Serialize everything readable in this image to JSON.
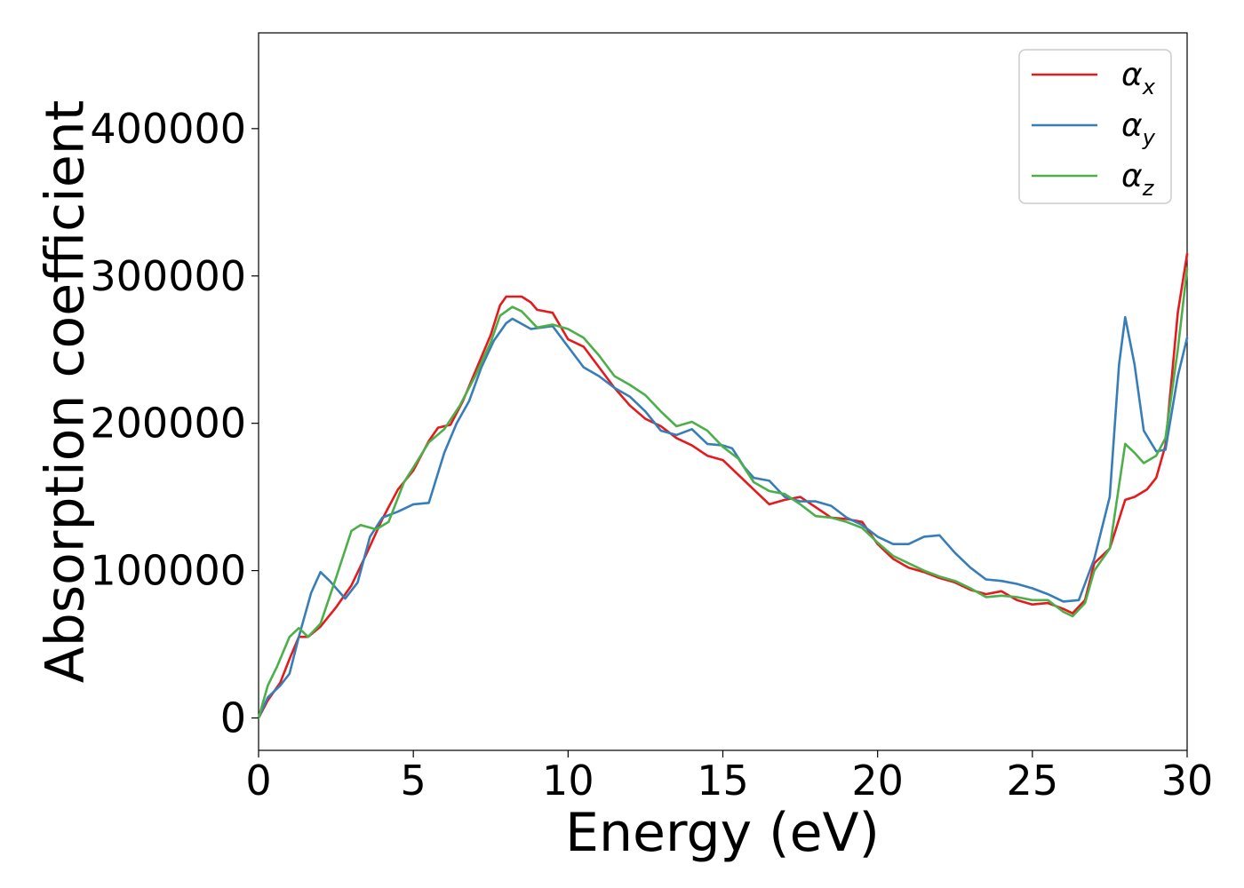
{
  "chart_data": {
    "type": "line",
    "title": "",
    "xlabel": "Energy (eV)",
    "ylabel": "Absorption coefficient",
    "xlim": [
      0,
      30
    ],
    "ylim": [
      -22000,
      465000
    ],
    "x_ticks": [
      "0",
      "5",
      "10",
      "15",
      "20",
      "25",
      "30"
    ],
    "y_ticks": [
      "0",
      "100000",
      "200000",
      "300000",
      "400000"
    ],
    "x_tick_values": [
      0,
      5,
      10,
      15,
      20,
      25,
      30
    ],
    "y_tick_values": [
      0,
      100000,
      200000,
      300000,
      400000
    ],
    "grid": false,
    "legend": {
      "position": "top-right",
      "entries": [
        {
          "base": "α",
          "sub": "x"
        },
        {
          "base": "α",
          "sub": "y"
        },
        {
          "base": "α",
          "sub": "z"
        }
      ]
    },
    "series": [
      {
        "color": "#e41a1c",
        "points": [
          [
            0,
            0
          ],
          [
            0.3,
            12000
          ],
          [
            0.7,
            24000
          ],
          [
            1.0,
            40000
          ],
          [
            1.3,
            55000
          ],
          [
            1.6,
            55000
          ],
          [
            2.0,
            62000
          ],
          [
            2.5,
            75000
          ],
          [
            3.0,
            90000
          ],
          [
            3.5,
            112000
          ],
          [
            4.0,
            135000
          ],
          [
            4.5,
            155000
          ],
          [
            5.0,
            168000
          ],
          [
            5.5,
            188000
          ],
          [
            5.8,
            197000
          ],
          [
            6.2,
            199000
          ],
          [
            6.6,
            215000
          ],
          [
            7.0,
            235000
          ],
          [
            7.5,
            260000
          ],
          [
            7.8,
            280000
          ],
          [
            8.0,
            286000
          ],
          [
            8.5,
            286000
          ],
          [
            8.8,
            282000
          ],
          [
            9.0,
            277000
          ],
          [
            9.5,
            275000
          ],
          [
            10.0,
            257000
          ],
          [
            10.5,
            252000
          ],
          [
            11.0,
            238000
          ],
          [
            11.5,
            224000
          ],
          [
            12.0,
            212000
          ],
          [
            12.5,
            203000
          ],
          [
            13.0,
            198000
          ],
          [
            13.5,
            190000
          ],
          [
            14.0,
            185000
          ],
          [
            14.5,
            178000
          ],
          [
            15.0,
            175000
          ],
          [
            15.5,
            165000
          ],
          [
            16.0,
            155000
          ],
          [
            16.5,
            145000
          ],
          [
            17.0,
            148000
          ],
          [
            17.5,
            150000
          ],
          [
            18.0,
            143000
          ],
          [
            18.5,
            136000
          ],
          [
            19.0,
            135000
          ],
          [
            19.5,
            133000
          ],
          [
            20.0,
            118000
          ],
          [
            20.5,
            108000
          ],
          [
            21.0,
            102000
          ],
          [
            21.5,
            99000
          ],
          [
            22.0,
            95000
          ],
          [
            22.5,
            92000
          ],
          [
            23.0,
            87000
          ],
          [
            23.5,
            84000
          ],
          [
            24.0,
            86000
          ],
          [
            24.5,
            80000
          ],
          [
            25.0,
            77000
          ],
          [
            25.5,
            78000
          ],
          [
            26.0,
            74000
          ],
          [
            26.3,
            71000
          ],
          [
            26.7,
            80000
          ],
          [
            27.0,
            105000
          ],
          [
            27.5,
            115000
          ],
          [
            28.0,
            148000
          ],
          [
            28.3,
            150000
          ],
          [
            28.7,
            155000
          ],
          [
            29.0,
            163000
          ],
          [
            29.3,
            185000
          ],
          [
            29.7,
            275000
          ],
          [
            30.0,
            315000
          ]
        ]
      },
      {
        "color": "#377eb8",
        "points": [
          [
            0,
            0
          ],
          [
            0.3,
            14000
          ],
          [
            0.7,
            22000
          ],
          [
            1.0,
            30000
          ],
          [
            1.3,
            55000
          ],
          [
            1.7,
            85000
          ],
          [
            2.0,
            99000
          ],
          [
            2.3,
            93000
          ],
          [
            2.8,
            81000
          ],
          [
            3.2,
            92000
          ],
          [
            3.6,
            123000
          ],
          [
            4.0,
            136000
          ],
          [
            4.5,
            140000
          ],
          [
            5.0,
            145000
          ],
          [
            5.5,
            146000
          ],
          [
            6.0,
            180000
          ],
          [
            6.4,
            200000
          ],
          [
            6.8,
            215000
          ],
          [
            7.2,
            238000
          ],
          [
            7.6,
            256000
          ],
          [
            8.0,
            268000
          ],
          [
            8.2,
            271000
          ],
          [
            8.8,
            264000
          ],
          [
            9.5,
            266000
          ],
          [
            10.0,
            252000
          ],
          [
            10.5,
            238000
          ],
          [
            11.0,
            232000
          ],
          [
            11.5,
            224000
          ],
          [
            12.0,
            218000
          ],
          [
            12.5,
            208000
          ],
          [
            13.0,
            195000
          ],
          [
            13.5,
            192000
          ],
          [
            14.0,
            196000
          ],
          [
            14.5,
            186000
          ],
          [
            15.0,
            185000
          ],
          [
            15.3,
            183000
          ],
          [
            15.7,
            170000
          ],
          [
            16.0,
            163000
          ],
          [
            16.5,
            161000
          ],
          [
            17.0,
            150000
          ],
          [
            17.5,
            147000
          ],
          [
            18.0,
            147000
          ],
          [
            18.5,
            144000
          ],
          [
            19.0,
            136000
          ],
          [
            19.5,
            131000
          ],
          [
            20.0,
            123000
          ],
          [
            20.5,
            118000
          ],
          [
            21.0,
            118000
          ],
          [
            21.5,
            123000
          ],
          [
            22.0,
            124000
          ],
          [
            22.5,
            112000
          ],
          [
            23.0,
            102000
          ],
          [
            23.5,
            94000
          ],
          [
            24.0,
            93000
          ],
          [
            24.5,
            91000
          ],
          [
            25.0,
            88000
          ],
          [
            25.5,
            84000
          ],
          [
            26.0,
            79000
          ],
          [
            26.5,
            80000
          ],
          [
            27.0,
            108000
          ],
          [
            27.5,
            150000
          ],
          [
            27.8,
            240000
          ],
          [
            28.0,
            272000
          ],
          [
            28.3,
            240000
          ],
          [
            28.6,
            195000
          ],
          [
            29.0,
            181000
          ],
          [
            29.3,
            182000
          ],
          [
            29.7,
            232000
          ],
          [
            30.0,
            258000
          ]
        ]
      },
      {
        "color": "#4daf4a",
        "points": [
          [
            0,
            0
          ],
          [
            0.3,
            22000
          ],
          [
            0.6,
            35000
          ],
          [
            1.0,
            55000
          ],
          [
            1.3,
            61000
          ],
          [
            1.6,
            55000
          ],
          [
            2.0,
            64000
          ],
          [
            2.5,
            95000
          ],
          [
            3.0,
            127000
          ],
          [
            3.3,
            131000
          ],
          [
            3.8,
            128000
          ],
          [
            4.2,
            133000
          ],
          [
            4.7,
            160000
          ],
          [
            5.0,
            170000
          ],
          [
            5.5,
            187000
          ],
          [
            6.0,
            196000
          ],
          [
            6.5,
            212000
          ],
          [
            7.0,
            232000
          ],
          [
            7.5,
            255000
          ],
          [
            7.8,
            273000
          ],
          [
            8.2,
            279000
          ],
          [
            8.5,
            276000
          ],
          [
            9.0,
            265000
          ],
          [
            9.5,
            267000
          ],
          [
            10.0,
            264000
          ],
          [
            10.5,
            258000
          ],
          [
            11.0,
            246000
          ],
          [
            11.5,
            232000
          ],
          [
            12.0,
            226000
          ],
          [
            12.5,
            219000
          ],
          [
            13.0,
            208000
          ],
          [
            13.5,
            198000
          ],
          [
            14.0,
            201000
          ],
          [
            14.5,
            195000
          ],
          [
            15.0,
            184000
          ],
          [
            15.5,
            176000
          ],
          [
            16.0,
            160000
          ],
          [
            16.5,
            154000
          ],
          [
            17.0,
            152000
          ],
          [
            17.5,
            145000
          ],
          [
            18.0,
            137000
          ],
          [
            18.5,
            136000
          ],
          [
            19.0,
            133000
          ],
          [
            19.5,
            129000
          ],
          [
            20.0,
            119000
          ],
          [
            20.5,
            110000
          ],
          [
            21.0,
            105000
          ],
          [
            21.5,
            100000
          ],
          [
            22.0,
            96000
          ],
          [
            22.5,
            93000
          ],
          [
            23.0,
            88000
          ],
          [
            23.5,
            82000
          ],
          [
            24.0,
            83000
          ],
          [
            24.5,
            82000
          ],
          [
            25.0,
            80000
          ],
          [
            25.5,
            80000
          ],
          [
            26.0,
            72000
          ],
          [
            26.3,
            69000
          ],
          [
            26.7,
            78000
          ],
          [
            27.0,
            100000
          ],
          [
            27.5,
            115000
          ],
          [
            28.0,
            186000
          ],
          [
            28.3,
            180000
          ],
          [
            28.6,
            173000
          ],
          [
            29.0,
            178000
          ],
          [
            29.3,
            190000
          ],
          [
            29.7,
            250000
          ],
          [
            30.0,
            305000
          ]
        ]
      }
    ]
  }
}
